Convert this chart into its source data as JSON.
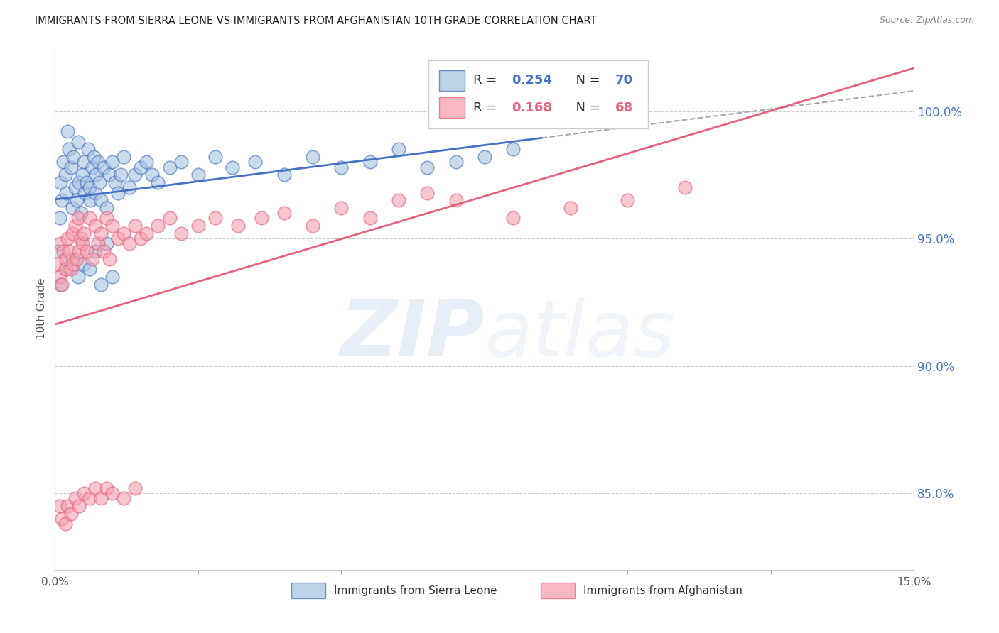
{
  "title": "IMMIGRANTS FROM SIERRA LEONE VS IMMIGRANTS FROM AFGHANISTAN 10TH GRADE CORRELATION CHART",
  "source": "Source: ZipAtlas.com",
  "ylabel": "10th Grade",
  "xlim": [
    0.0,
    15.0
  ],
  "ylim": [
    82.0,
    102.5
  ],
  "yticks": [
    85.0,
    90.0,
    95.0,
    100.0
  ],
  "ytick_labels": [
    "85.0%",
    "90.0%",
    "95.0%",
    "100.0%"
  ],
  "xticks": [
    0.0,
    2.5,
    5.0,
    7.5,
    10.0,
    12.5,
    15.0
  ],
  "xtick_labels": [
    "0.0%",
    "",
    "",
    "",
    "",
    "",
    "15.0%"
  ],
  "sierra_leone_R": 0.254,
  "sierra_leone_N": 70,
  "afghanistan_R": 0.168,
  "afghanistan_N": 68,
  "blue_color": "#A8C4E0",
  "pink_color": "#F4A0B0",
  "blue_line_color": "#4472C4",
  "pink_line_color": "#E8607A",
  "background_color": "#FFFFFF",
  "axis_color": "#4472C4",
  "grid_color": "#CCCCCC",
  "sierra_leone_x": [
    0.05,
    0.08,
    0.1,
    0.12,
    0.15,
    0.18,
    0.2,
    0.22,
    0.25,
    0.28,
    0.3,
    0.32,
    0.35,
    0.38,
    0.4,
    0.42,
    0.45,
    0.48,
    0.5,
    0.52,
    0.55,
    0.58,
    0.6,
    0.62,
    0.65,
    0.68,
    0.7,
    0.72,
    0.75,
    0.78,
    0.8,
    0.85,
    0.9,
    0.95,
    1.0,
    1.05,
    1.1,
    1.15,
    1.2,
    1.3,
    1.4,
    1.5,
    1.6,
    1.7,
    1.8,
    2.0,
    2.2,
    2.5,
    2.8,
    3.1,
    3.5,
    4.0,
    4.5,
    5.0,
    5.5,
    6.0,
    6.5,
    7.0,
    7.5,
    8.0,
    0.1,
    0.2,
    0.3,
    0.4,
    0.5,
    0.6,
    0.7,
    0.8,
    0.9,
    1.0
  ],
  "sierra_leone_y": [
    94.5,
    95.8,
    97.2,
    96.5,
    98.0,
    97.5,
    96.8,
    99.2,
    98.5,
    97.8,
    96.2,
    98.2,
    97.0,
    96.5,
    98.8,
    97.2,
    96.0,
    97.5,
    98.0,
    96.8,
    97.2,
    98.5,
    97.0,
    96.5,
    97.8,
    98.2,
    96.8,
    97.5,
    98.0,
    97.2,
    96.5,
    97.8,
    96.2,
    97.5,
    98.0,
    97.2,
    96.8,
    97.5,
    98.2,
    97.0,
    97.5,
    97.8,
    98.0,
    97.5,
    97.2,
    97.8,
    98.0,
    97.5,
    98.2,
    97.8,
    98.0,
    97.5,
    98.2,
    97.8,
    98.0,
    98.5,
    97.8,
    98.0,
    98.2,
    98.5,
    93.2,
    93.8,
    94.2,
    93.5,
    94.0,
    93.8,
    94.5,
    93.2,
    94.8,
    93.5
  ],
  "afghanistan_x": [
    0.05,
    0.08,
    0.1,
    0.12,
    0.15,
    0.18,
    0.2,
    0.22,
    0.25,
    0.28,
    0.3,
    0.32,
    0.35,
    0.38,
    0.4,
    0.42,
    0.45,
    0.48,
    0.5,
    0.55,
    0.6,
    0.65,
    0.7,
    0.75,
    0.8,
    0.85,
    0.9,
    0.95,
    1.0,
    1.1,
    1.2,
    1.3,
    1.4,
    1.5,
    1.6,
    1.8,
    2.0,
    2.2,
    2.5,
    2.8,
    3.2,
    3.6,
    4.0,
    4.5,
    5.0,
    5.5,
    6.0,
    6.5,
    7.0,
    8.0,
    9.0,
    10.0,
    11.0,
    0.08,
    0.12,
    0.18,
    0.22,
    0.28,
    0.35,
    0.42,
    0.5,
    0.6,
    0.7,
    0.8,
    0.9,
    1.0,
    1.2,
    1.4
  ],
  "afghanistan_y": [
    94.0,
    93.5,
    94.8,
    93.2,
    94.5,
    93.8,
    94.2,
    95.0,
    94.5,
    93.8,
    95.2,
    94.0,
    95.5,
    94.2,
    95.8,
    94.5,
    95.0,
    94.8,
    95.2,
    94.5,
    95.8,
    94.2,
    95.5,
    94.8,
    95.2,
    94.5,
    95.8,
    94.2,
    95.5,
    95.0,
    95.2,
    94.8,
    95.5,
    95.0,
    95.2,
    95.5,
    95.8,
    95.2,
    95.5,
    95.8,
    95.5,
    95.8,
    96.0,
    95.5,
    96.2,
    95.8,
    96.5,
    96.8,
    96.5,
    95.8,
    96.2,
    96.5,
    97.0,
    84.5,
    84.0,
    83.8,
    84.5,
    84.2,
    84.8,
    84.5,
    85.0,
    84.8,
    85.2,
    84.8,
    85.2,
    85.0,
    84.8,
    85.2
  ],
  "sl_trend_x_start": 0.0,
  "sl_trend_x_end": 8.5,
  "sl_trend_x_dash_end": 15.0,
  "af_trend_x_start": 0.0,
  "af_trend_x_end": 15.0
}
